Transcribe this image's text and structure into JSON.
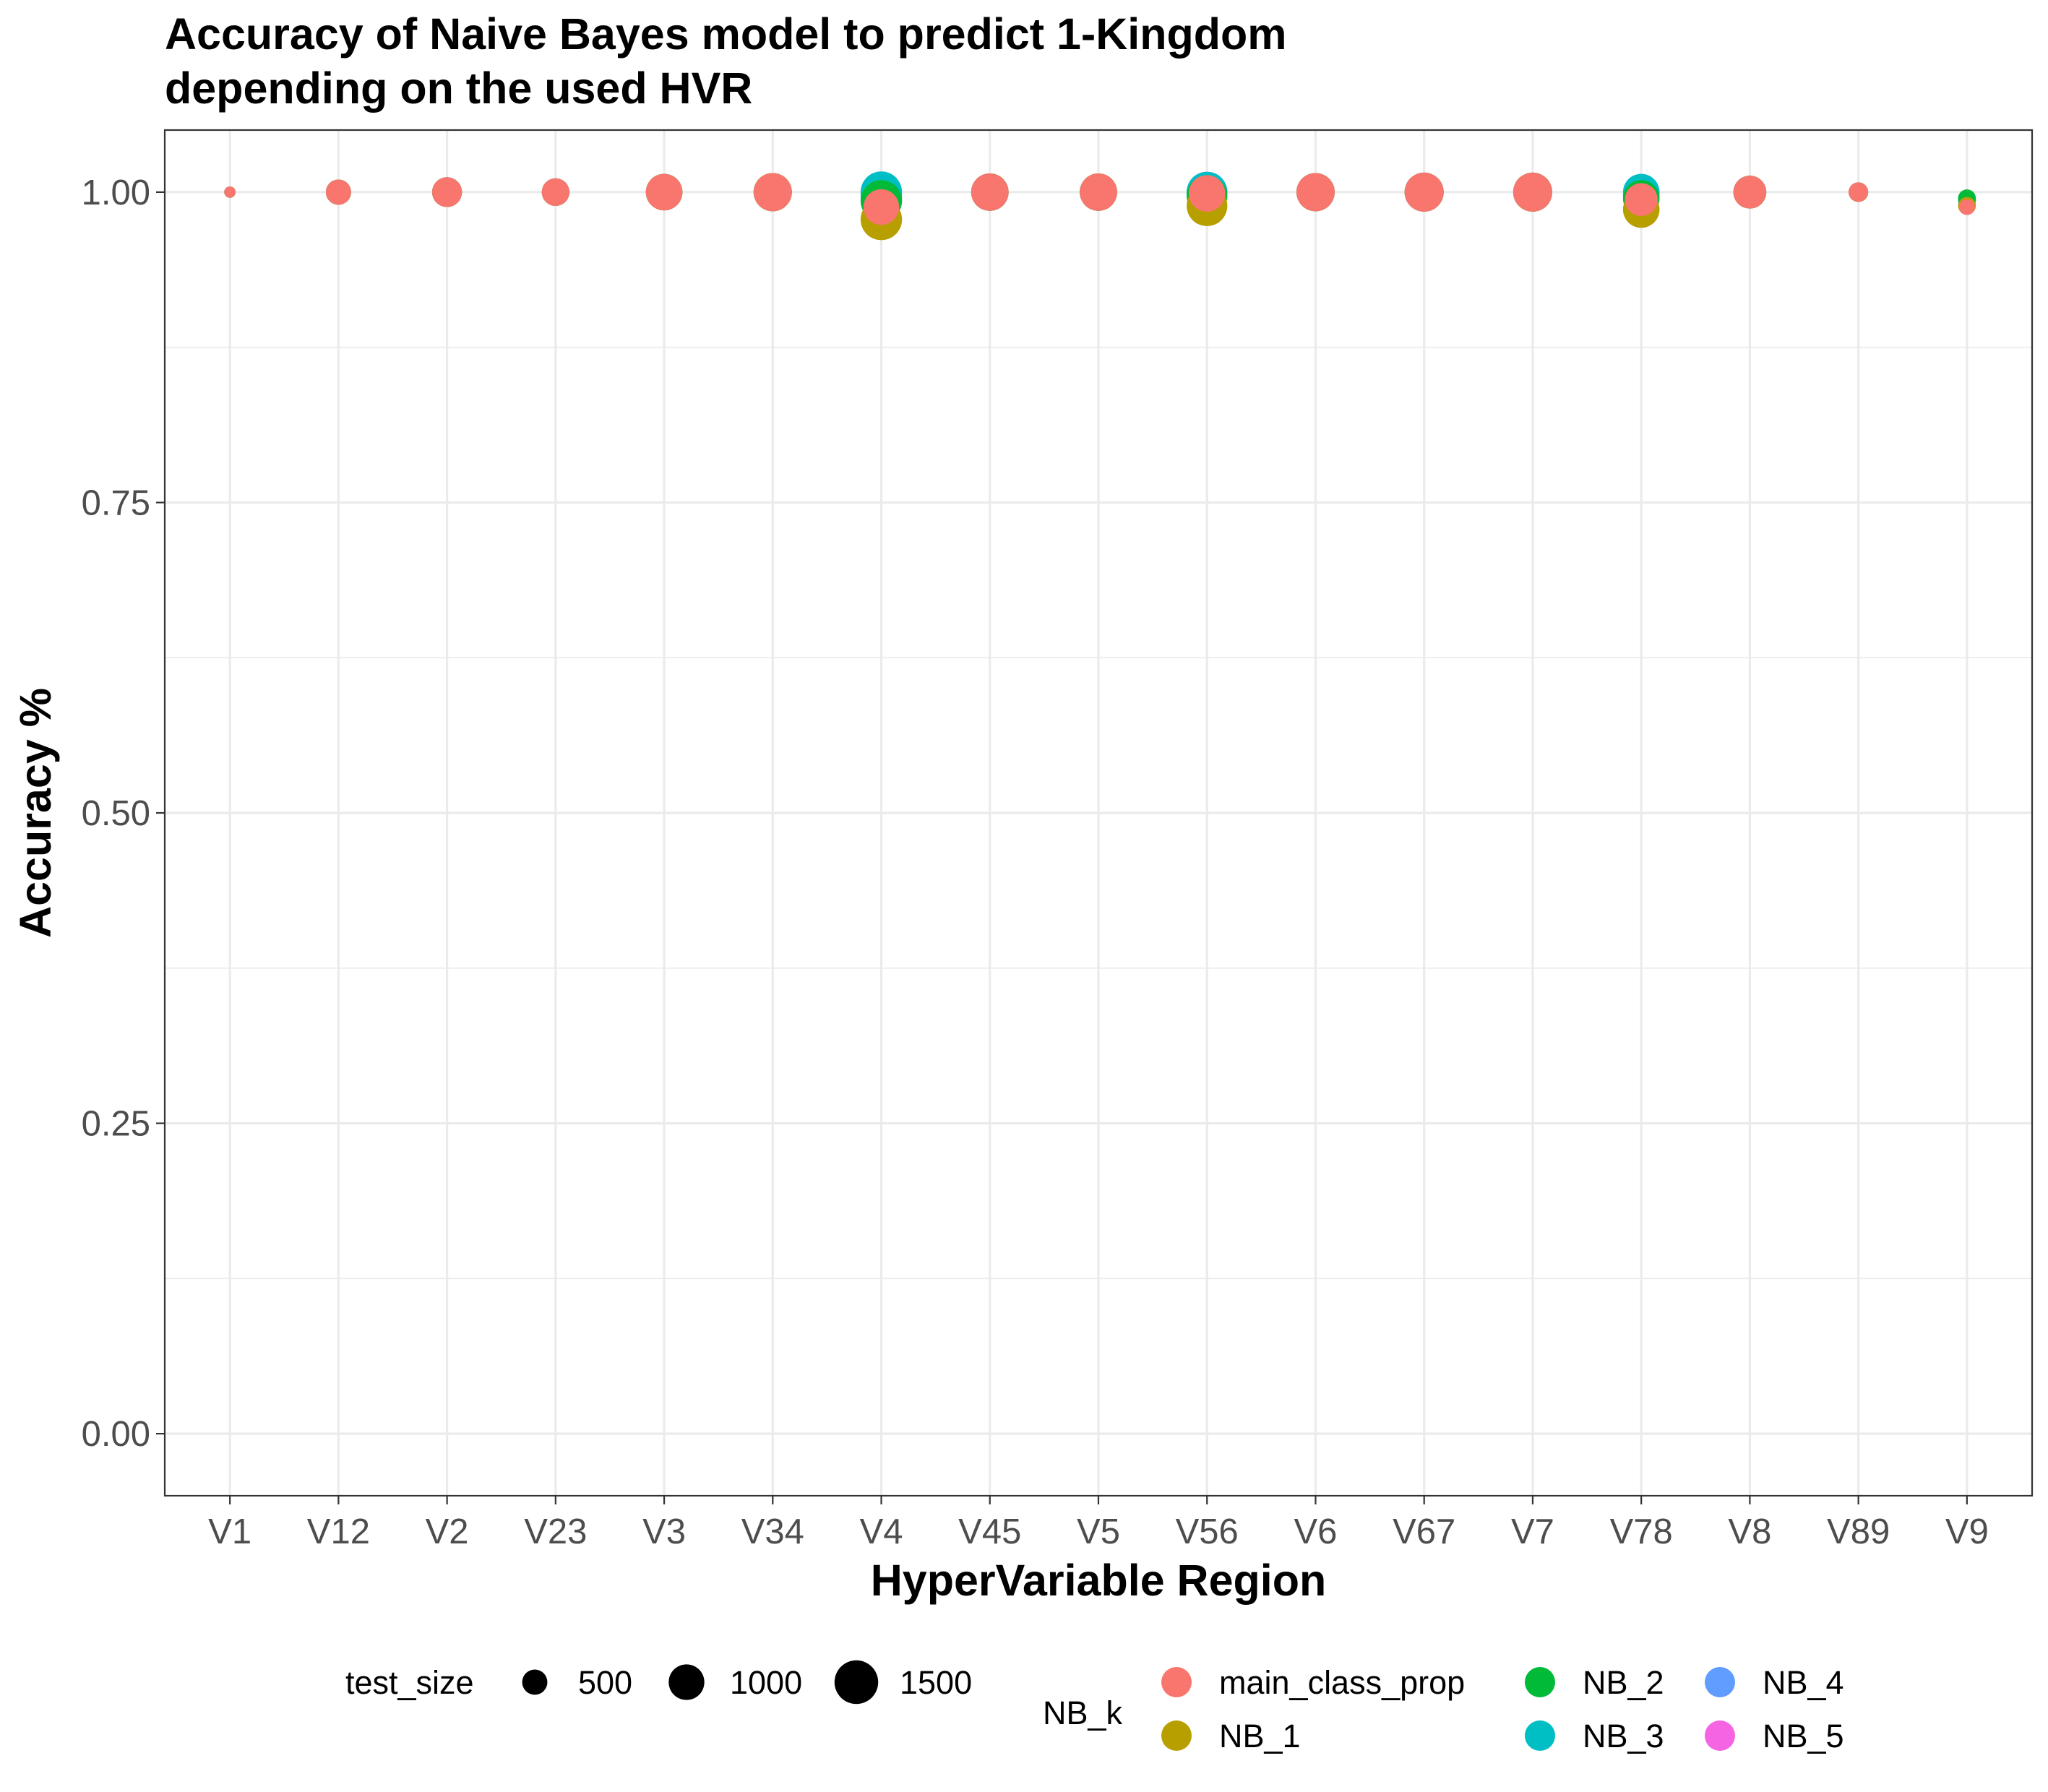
{
  "chart_data": {
    "type": "scatter",
    "title": [
      "Accuracy of Naive Bayes model to predict 1-Kingdom",
      "depending on the used HVR"
    ],
    "xlabel": "HyperVariable Region",
    "ylabel": "Accuracy %",
    "categories": [
      "V1",
      "V12",
      "V2",
      "V23",
      "V3",
      "V34",
      "V4",
      "V45",
      "V5",
      "V56",
      "V6",
      "V67",
      "V7",
      "V78",
      "V8",
      "V89",
      "V9"
    ],
    "ylim": [
      -0.05,
      1.05
    ],
    "yticks": [
      0.0,
      0.25,
      0.5,
      0.75,
      1.0
    ],
    "ytick_labels": [
      "0.00",
      "0.25",
      "0.50",
      "0.75",
      "1.00"
    ],
    "grid": true,
    "size_legend": {
      "title": "test_size",
      "breaks": [
        500,
        1000,
        1500
      ],
      "labels": [
        "500",
        "1000",
        "1500"
      ]
    },
    "color_legend": {
      "title": "NB_k",
      "position": "bottom",
      "entries": [
        {
          "name": "main_class_prop",
          "color": "#F8766D"
        },
        {
          "name": "NB_1",
          "color": "#B79F00"
        },
        {
          "name": "NB_2",
          "color": "#00BA38"
        },
        {
          "name": "NB_3",
          "color": "#00BFC4"
        },
        {
          "name": "NB_4",
          "color": "#619CFF"
        },
        {
          "name": "NB_5",
          "color": "#F564E3"
        }
      ]
    },
    "series": [
      {
        "name": "NB_5",
        "color": "#F564E3",
        "points": [
          {
            "x": "V1",
            "y": 1.0,
            "size": 100
          },
          {
            "x": "V12",
            "y": 1.0,
            "size": 500
          },
          {
            "x": "V2",
            "y": 1.0,
            "size": 700
          },
          {
            "x": "V23",
            "y": 1.0,
            "size": 600
          },
          {
            "x": "V3",
            "y": 1.0,
            "size": 1050
          },
          {
            "x": "V34",
            "y": 1.0,
            "size": 1150
          },
          {
            "x": "V4",
            "y": 0.995,
            "size": 1350
          },
          {
            "x": "V45",
            "y": 1.0,
            "size": 1100
          },
          {
            "x": "V5",
            "y": 1.0,
            "size": 1100
          },
          {
            "x": "V56",
            "y": 1.0,
            "size": 1300
          },
          {
            "x": "V6",
            "y": 1.0,
            "size": 1150
          },
          {
            "x": "V67",
            "y": 1.0,
            "size": 1200
          },
          {
            "x": "V7",
            "y": 1.0,
            "size": 1200
          },
          {
            "x": "V78",
            "y": 0.998,
            "size": 1050
          },
          {
            "x": "V8",
            "y": 1.0,
            "size": 850
          },
          {
            "x": "V89",
            "y": 1.0,
            "size": 300
          },
          {
            "x": "V9",
            "y": 0.993,
            "size": 250
          }
        ]
      },
      {
        "name": "NB_4",
        "color": "#619CFF",
        "points": [
          {
            "x": "V1",
            "y": 1.0,
            "size": 100
          },
          {
            "x": "V12",
            "y": 1.0,
            "size": 500
          },
          {
            "x": "V2",
            "y": 1.0,
            "size": 700
          },
          {
            "x": "V23",
            "y": 1.0,
            "size": 600
          },
          {
            "x": "V3",
            "y": 1.0,
            "size": 1050
          },
          {
            "x": "V34",
            "y": 1.0,
            "size": 1150
          },
          {
            "x": "V4",
            "y": 0.997,
            "size": 1350
          },
          {
            "x": "V45",
            "y": 1.0,
            "size": 1100
          },
          {
            "x": "V5",
            "y": 1.0,
            "size": 1100
          },
          {
            "x": "V56",
            "y": 1.0,
            "size": 1300
          },
          {
            "x": "V6",
            "y": 1.0,
            "size": 1150
          },
          {
            "x": "V67",
            "y": 1.0,
            "size": 1200
          },
          {
            "x": "V7",
            "y": 1.0,
            "size": 1200
          },
          {
            "x": "V78",
            "y": 0.998,
            "size": 1050
          },
          {
            "x": "V8",
            "y": 1.0,
            "size": 850
          },
          {
            "x": "V89",
            "y": 1.0,
            "size": 300
          },
          {
            "x": "V9",
            "y": 0.993,
            "size": 250
          }
        ]
      },
      {
        "name": "NB_3",
        "color": "#00BFC4",
        "points": [
          {
            "x": "V1",
            "y": 1.0,
            "size": 100
          },
          {
            "x": "V12",
            "y": 1.0,
            "size": 500
          },
          {
            "x": "V2",
            "y": 1.0,
            "size": 700
          },
          {
            "x": "V23",
            "y": 1.0,
            "size": 600
          },
          {
            "x": "V3",
            "y": 1.0,
            "size": 1050
          },
          {
            "x": "V34",
            "y": 1.0,
            "size": 1150
          },
          {
            "x": "V4",
            "y": 1.0,
            "size": 1350
          },
          {
            "x": "V45",
            "y": 1.0,
            "size": 1100
          },
          {
            "x": "V5",
            "y": 1.0,
            "size": 1100
          },
          {
            "x": "V56",
            "y": 1.0,
            "size": 1300
          },
          {
            "x": "V6",
            "y": 1.0,
            "size": 1150
          },
          {
            "x": "V67",
            "y": 1.0,
            "size": 1200
          },
          {
            "x": "V7",
            "y": 1.0,
            "size": 1200
          },
          {
            "x": "V78",
            "y": 1.0,
            "size": 1050
          },
          {
            "x": "V8",
            "y": 1.0,
            "size": 850
          },
          {
            "x": "V89",
            "y": 1.0,
            "size": 300
          },
          {
            "x": "V9",
            "y": 0.994,
            "size": 250
          }
        ]
      },
      {
        "name": "NB_2",
        "color": "#00BA38",
        "points": [
          {
            "x": "V1",
            "y": 1.0,
            "size": 100
          },
          {
            "x": "V12",
            "y": 1.0,
            "size": 500
          },
          {
            "x": "V2",
            "y": 1.0,
            "size": 700
          },
          {
            "x": "V23",
            "y": 1.0,
            "size": 600
          },
          {
            "x": "V3",
            "y": 1.0,
            "size": 1050
          },
          {
            "x": "V34",
            "y": 1.0,
            "size": 1150
          },
          {
            "x": "V4",
            "y": 0.993,
            "size": 1350
          },
          {
            "x": "V45",
            "y": 1.0,
            "size": 1100
          },
          {
            "x": "V5",
            "y": 1.0,
            "size": 1100
          },
          {
            "x": "V56",
            "y": 0.997,
            "size": 1300
          },
          {
            "x": "V6",
            "y": 1.0,
            "size": 1150
          },
          {
            "x": "V67",
            "y": 1.0,
            "size": 1200
          },
          {
            "x": "V7",
            "y": 1.0,
            "size": 1200
          },
          {
            "x": "V78",
            "y": 0.995,
            "size": 1050
          },
          {
            "x": "V8",
            "y": 1.0,
            "size": 850
          },
          {
            "x": "V89",
            "y": 1.0,
            "size": 300
          },
          {
            "x": "V9",
            "y": 0.995,
            "size": 250
          }
        ]
      },
      {
        "name": "NB_1",
        "color": "#B79F00",
        "points": [
          {
            "x": "V1",
            "y": 1.0,
            "size": 100
          },
          {
            "x": "V12",
            "y": 1.0,
            "size": 500
          },
          {
            "x": "V2",
            "y": 1.0,
            "size": 700
          },
          {
            "x": "V23",
            "y": 1.0,
            "size": 600
          },
          {
            "x": "V3",
            "y": 1.0,
            "size": 1050
          },
          {
            "x": "V34",
            "y": 1.0,
            "size": 1150
          },
          {
            "x": "V4",
            "y": 0.978,
            "size": 1350
          },
          {
            "x": "V45",
            "y": 1.0,
            "size": 1100
          },
          {
            "x": "V5",
            "y": 1.0,
            "size": 1100
          },
          {
            "x": "V56",
            "y": 0.989,
            "size": 1300
          },
          {
            "x": "V6",
            "y": 1.0,
            "size": 1150
          },
          {
            "x": "V67",
            "y": 1.0,
            "size": 1200
          },
          {
            "x": "V7",
            "y": 1.0,
            "size": 1200
          },
          {
            "x": "V78",
            "y": 0.986,
            "size": 1050
          },
          {
            "x": "V8",
            "y": 1.0,
            "size": 850
          },
          {
            "x": "V89",
            "y": 1.0,
            "size": 300
          },
          {
            "x": "V9",
            "y": 0.989,
            "size": 250
          }
        ]
      },
      {
        "name": "main_class_prop",
        "color": "#F8766D",
        "points": [
          {
            "x": "V1",
            "y": 1.0,
            "size": 100
          },
          {
            "x": "V12",
            "y": 1.0,
            "size": 500
          },
          {
            "x": "V2",
            "y": 1.0,
            "size": 700
          },
          {
            "x": "V23",
            "y": 1.0,
            "size": 600
          },
          {
            "x": "V3",
            "y": 1.0,
            "size": 1050
          },
          {
            "x": "V34",
            "y": 1.0,
            "size": 1150
          },
          {
            "x": "V4",
            "y": 0.988,
            "size": 1000
          },
          {
            "x": "V45",
            "y": 1.0,
            "size": 1100
          },
          {
            "x": "V5",
            "y": 1.0,
            "size": 1100
          },
          {
            "x": "V56",
            "y": 0.999,
            "size": 1050
          },
          {
            "x": "V6",
            "y": 1.0,
            "size": 1150
          },
          {
            "x": "V67",
            "y": 1.0,
            "size": 1200
          },
          {
            "x": "V7",
            "y": 1.0,
            "size": 1200
          },
          {
            "x": "V78",
            "y": 0.994,
            "size": 850
          },
          {
            "x": "V8",
            "y": 1.0,
            "size": 850
          },
          {
            "x": "V89",
            "y": 1.0,
            "size": 300
          },
          {
            "x": "V9",
            "y": 0.988,
            "size": 200
          }
        ]
      }
    ]
  }
}
